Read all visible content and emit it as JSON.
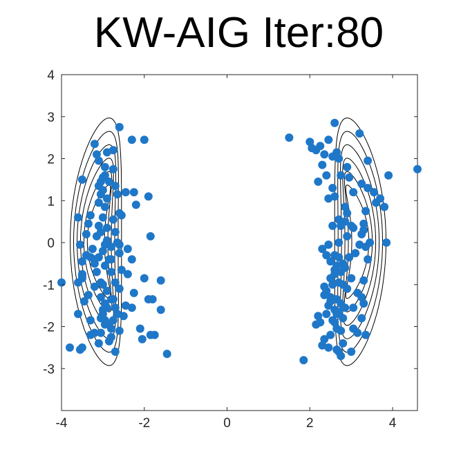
{
  "chart_data": {
    "type": "scatter",
    "title": "KW-AIG Iter:80",
    "xlabel": "",
    "ylabel": "",
    "xlim": [
      -4,
      4.6
    ],
    "ylim": [
      -4,
      4
    ],
    "xticks": [
      -4,
      -2,
      0,
      2,
      4
    ],
    "yticks": [
      -3,
      -2,
      -1,
      0,
      1,
      2,
      3,
      4
    ],
    "xtick_labels": [
      "-4",
      "-2",
      "0",
      "2",
      "4"
    ],
    "ytick_labels": [
      "-3",
      "-2",
      "-1",
      "0",
      "1",
      "2",
      "3",
      "4"
    ],
    "grid": false,
    "colors": {
      "points": "#1f77c8",
      "contours": "#000000",
      "axes": "#262626"
    },
    "contour_overlay": {
      "description": "target density contour lines",
      "levels": 6,
      "centers": [
        -2.8,
        2.8
      ],
      "y_range": [
        -2.9,
        2.95
      ]
    },
    "series": [
      {
        "type": "scatter",
        "x": [
          -2.6,
          -2.3,
          -3.2,
          -2.0,
          -2.75,
          -2.9,
          -3.15,
          -3.1,
          -2.95,
          -2.75,
          -2.95,
          -3.0,
          -3.05,
          -2.85,
          -2.7,
          -3.1,
          -3.5,
          -3.0,
          -3.05,
          -2.9,
          -2.65,
          -2.45,
          -2.25,
          -1.9,
          -3.1,
          -2.95,
          -2.6,
          -2.55,
          -3.3,
          -3.0,
          -2.75,
          -3.6,
          -3.35,
          -3.1,
          -2.9,
          -3.05,
          -2.7,
          -3.4,
          -3.15,
          -2.65,
          -2.6,
          -1.85,
          -2.95,
          -3.55,
          -2.8,
          -3.25,
          -3.0,
          -2.6,
          -2.4,
          -3.3,
          -3.1,
          -3.2,
          -2.85,
          -2.3,
          -3.5,
          -2.95,
          -2.8,
          -3.5,
          -3.5,
          -3.5,
          -3.6,
          -2.4,
          -2.0,
          -3.05,
          -3.2,
          -2.9,
          -1.6,
          -2.25,
          -2.6,
          -3.35,
          -2.8,
          -3.45,
          -2.75,
          -2.95,
          -2.45,
          -1.9,
          -1.8,
          -2.9,
          -3.0,
          -2.7,
          -3.0,
          -2.3,
          -3.05,
          -2.95,
          -2.75,
          -2.5,
          -1.6,
          -3.6,
          -3.3,
          -2.95,
          -2.8,
          -2.1,
          -3.2,
          -3.05,
          -2.6,
          -2.8,
          -2.05,
          -1.85,
          -1.75,
          -3.3,
          -2.85,
          -3.5,
          -2.7,
          -1.45,
          -3.8,
          -3.55,
          -2.65,
          -4.0,
          -2.2,
          -2.9,
          -3.2,
          -3.0,
          -3.15,
          -2.8,
          -2.7,
          -3.05,
          -2.85,
          -2.55,
          -3.1,
          -3.4,
          2.6,
          3.2,
          2.45,
          2.0,
          2.25,
          2.15,
          2.65,
          2.35,
          2.55,
          2.7,
          3.4,
          2.3,
          2.9,
          1.5,
          2.05,
          2.4,
          2.75,
          2.95,
          3.9,
          3.55,
          4.6,
          3.25,
          3.4,
          2.55,
          3.05,
          3.7,
          2.6,
          2.45,
          3.6,
          3.8,
          2.2,
          2.85,
          3.35,
          2.9,
          2.7,
          2.85,
          3.3,
          2.75,
          3.0,
          3.05,
          3.3,
          3.25,
          2.9,
          3.45,
          2.7,
          2.45,
          3.2,
          3.35,
          2.3,
          3.1,
          2.6,
          2.4,
          2.7,
          3.85,
          2.95,
          3.4,
          2.5,
          2.8,
          2.65,
          2.85,
          2.75,
          2.6,
          2.5,
          3.0,
          2.7,
          2.55,
          2.8,
          2.9,
          2.4,
          3.15,
          2.35,
          2.5,
          3.25,
          2.65,
          2.5,
          2.75,
          2.45,
          3.05,
          3.3,
          2.6,
          2.7,
          2.4,
          2.2,
          2.8,
          2.55,
          3.25,
          2.6,
          2.25,
          2.15,
          2.65,
          3.05,
          2.75,
          2.5,
          3.35,
          2.35,
          2.8,
          3.15,
          2.45,
          2.65,
          2.3,
          2.7,
          1.85,
          2.75,
          3.0,
          2.85,
          2.6,
          2.95,
          3.3,
          2.55,
          2.35,
          2.65
        ],
        "y": [
          2.75,
          2.45,
          2.35,
          2.45,
          2.2,
          2.15,
          2.1,
          1.95,
          1.8,
          1.75,
          1.6,
          1.55,
          1.45,
          1.45,
          1.35,
          1.35,
          1.5,
          1.25,
          1.15,
          1.05,
          1.15,
          1.2,
          1.2,
          1.1,
          0.95,
          0.85,
          0.7,
          0.65,
          0.65,
          0.6,
          0.55,
          0.6,
          0.45,
          0.4,
          0.35,
          0.25,
          0.25,
          0.2,
          0.15,
          0.0,
          -0.05,
          0.15,
          -0.05,
          -0.05,
          -0.1,
          -0.15,
          -0.2,
          -0.25,
          -0.15,
          -0.35,
          -0.35,
          -0.4,
          -0.4,
          -0.4,
          -0.45,
          -0.55,
          -0.7,
          -0.75,
          -0.8,
          -0.85,
          -0.95,
          -0.75,
          -0.85,
          -0.95,
          -1.05,
          -1.15,
          -0.9,
          -1.2,
          -1.1,
          -1.25,
          -1.35,
          -1.4,
          -1.35,
          -1.45,
          -1.5,
          -1.35,
          -1.35,
          -1.55,
          -1.6,
          -1.55,
          -1.7,
          -1.55,
          -1.8,
          -1.85,
          -1.85,
          -1.75,
          -1.6,
          -1.7,
          -1.85,
          -1.95,
          -2.05,
          -2.05,
          -2.15,
          -2.15,
          -2.1,
          -2.25,
          -2.3,
          -2.2,
          -2.2,
          -2.2,
          -2.35,
          -2.5,
          -2.6,
          -2.65,
          -2.5,
          -2.55,
          -1.7,
          -0.95,
          0.9,
          0.05,
          -0.5,
          -1.0,
          -0.7,
          -0.4,
          -0.95,
          -1.3,
          -1.95,
          -0.65,
          -2.4,
          -0.3,
          2.85,
          2.6,
          2.45,
          2.4,
          2.3,
          2.2,
          2.15,
          2.1,
          2.05,
          2.0,
          1.95,
          1.85,
          1.8,
          2.5,
          2.25,
          1.6,
          1.6,
          1.55,
          1.6,
          1.2,
          1.75,
          1.4,
          1.3,
          1.3,
          1.2,
          1.05,
          1.1,
          1.05,
          0.95,
          0.85,
          1.45,
          0.85,
          0.75,
          0.7,
          0.55,
          0.5,
          0.45,
          0.4,
          0.4,
          0.35,
          0.3,
          0.2,
          0.15,
          0.0,
          0.0,
          -0.05,
          -0.05,
          -0.1,
          -0.15,
          -0.25,
          -0.3,
          -0.3,
          -0.35,
          0.0,
          -0.35,
          -0.4,
          -0.45,
          -0.5,
          -0.55,
          -0.6,
          -0.7,
          -0.75,
          -0.85,
          -0.85,
          -0.95,
          -1.0,
          -1.0,
          -1.1,
          -1.15,
          -1.2,
          -1.25,
          -1.3,
          -1.3,
          -1.35,
          -1.4,
          -1.45,
          -1.5,
          -1.55,
          -1.45,
          -1.6,
          -1.65,
          -1.7,
          -1.75,
          -1.8,
          -1.85,
          -1.8,
          -1.9,
          -1.9,
          -1.95,
          -2.05,
          -2.05,
          -2.1,
          -2.2,
          -2.2,
          -2.3,
          -2.4,
          -2.15,
          -2.5,
          -2.55,
          -2.45,
          -2.6,
          -2.8,
          -2.7,
          -2.6,
          -1.55,
          -0.65,
          -0.35,
          -0.9,
          0.4,
          -1.05,
          -1.7
        ]
      }
    ]
  }
}
